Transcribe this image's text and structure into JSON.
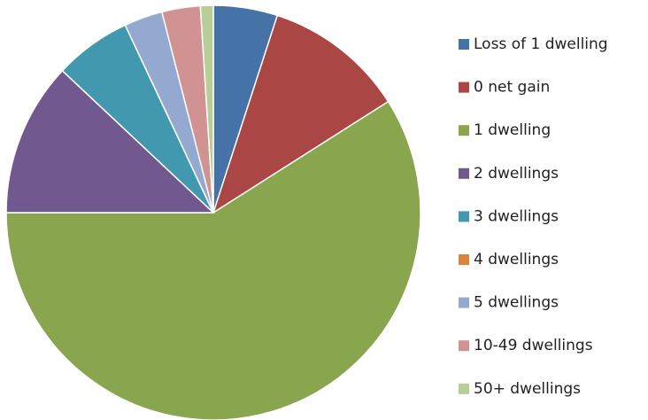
{
  "chart_data": {
    "type": "pie",
    "categories": [
      "Loss of 1 dwelling",
      "0 net gain",
      "1 dwelling",
      "2 dwellings",
      "3 dwellings",
      "4 dwellings",
      "5 dwellings",
      "10-49 dwellings",
      "50+ dwellings"
    ],
    "values": [
      5,
      11,
      59,
      12,
      6,
      0,
      3,
      3,
      1
    ],
    "colors": [
      "#4572a7",
      "#aa4643",
      "#89a54e",
      "#71588f",
      "#4198af",
      "#db843d",
      "#93a9cf",
      "#d19392",
      "#b9cd96"
    ],
    "legend": "right"
  }
}
